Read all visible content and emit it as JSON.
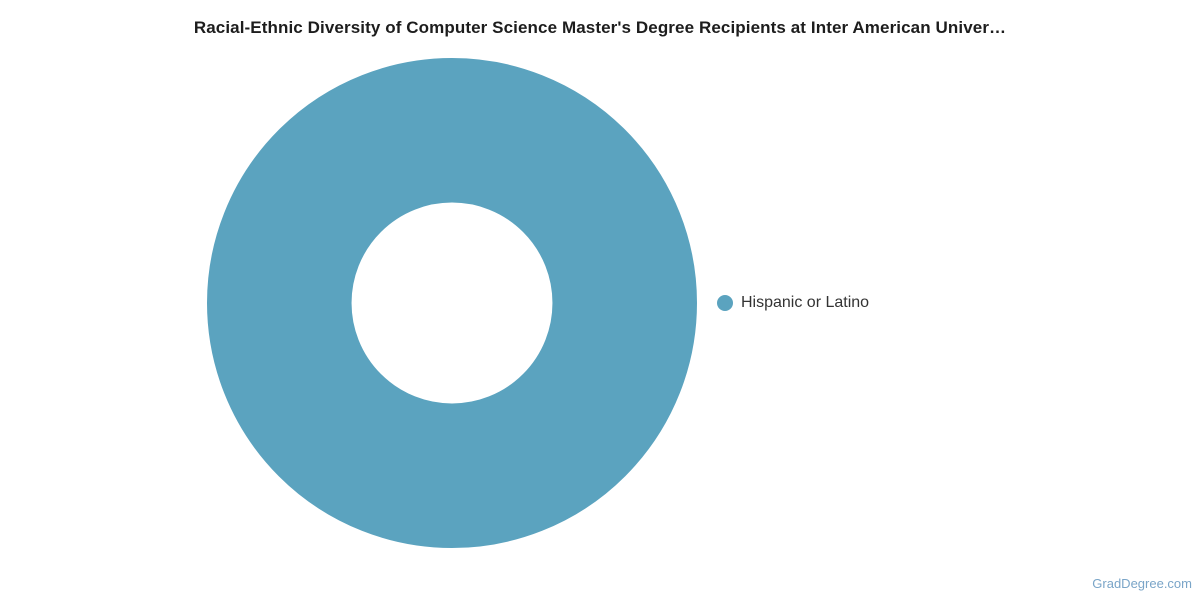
{
  "chart_data": {
    "type": "pie",
    "subtype": "donut",
    "title": "Racial-Ethnic Diversity of Computer Science Master's Degree Recipients at Inter American Univer…",
    "categories": [
      "Hispanic or Latino"
    ],
    "values": [
      100
    ],
    "value_unit": "percent",
    "colors": [
      "#5ba3bf"
    ],
    "inner_radius_ratio": 0.41,
    "legend_position": "right",
    "background": "#ffffff",
    "title_color": "#1d1d1d",
    "legend_text_color": "#333333"
  },
  "watermark": {
    "label": "GradDegree.com",
    "color": "#7aa5c8"
  }
}
